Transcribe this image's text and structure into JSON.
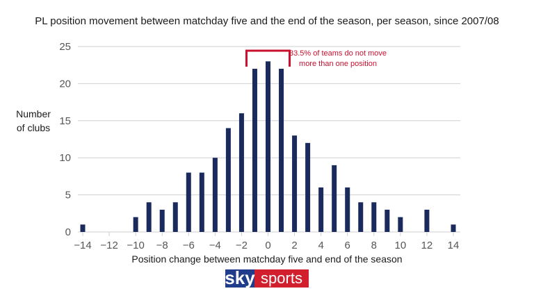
{
  "chart_data": {
    "type": "bar",
    "title": "PL position movement between matchday five and the end of the season, per season, since 2007/08",
    "xlabel": "Position change between matchday five and end of the season",
    "ylabel_line1": "Number",
    "ylabel_line2": "of clubs",
    "x": [
      -14,
      -13,
      -12,
      -11,
      -10,
      -9,
      -8,
      -7,
      -6,
      -5,
      -4,
      -3,
      -2,
      -1,
      0,
      1,
      2,
      3,
      4,
      5,
      6,
      7,
      8,
      9,
      10,
      11,
      12,
      13,
      14
    ],
    "values": [
      1,
      0,
      0,
      0,
      2,
      4,
      3,
      4,
      8,
      8,
      10,
      14,
      16,
      22,
      23,
      22,
      13,
      12,
      6,
      9,
      6,
      4,
      4,
      3,
      2,
      0,
      3,
      0,
      1
    ],
    "x_ticks": [
      "-14",
      "-12",
      "-10",
      "-8",
      "-6",
      "-4",
      "-2",
      "0",
      "2",
      "4",
      "6",
      "8",
      "10",
      "12",
      "14"
    ],
    "y_ticks": [
      "0",
      "5",
      "10",
      "15",
      "20",
      "25"
    ],
    "xlim": [
      -14,
      14
    ],
    "ylim": [
      0,
      25
    ],
    "grid": "horizontal",
    "bar_color": "#1b2a5c",
    "annotation": {
      "line1": "33.5% of teams do not move",
      "line2": "more than one position",
      "x_range": [
        -1,
        1
      ],
      "color": "#c8102e"
    }
  },
  "logo": {
    "sky": "sky",
    "sports": "sports",
    "sky_color": "#1f3d8a",
    "sports_color": "#d11f2e"
  }
}
